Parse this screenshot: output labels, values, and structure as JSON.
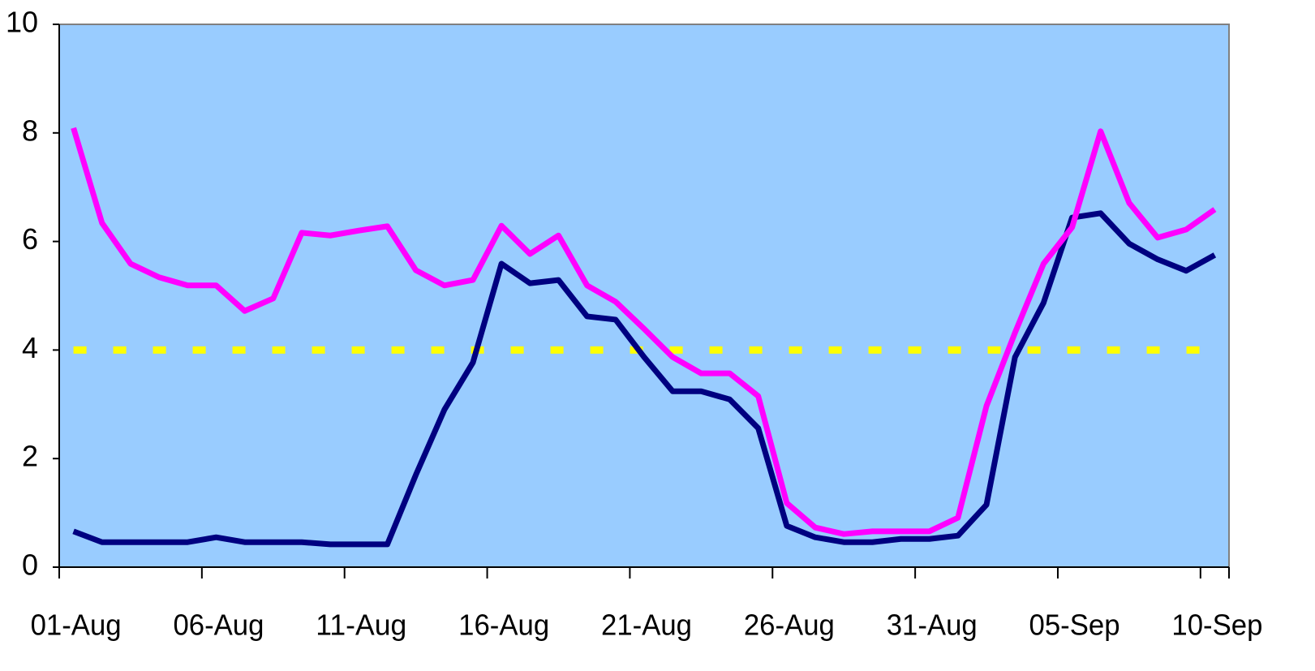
{
  "chart_data": {
    "type": "line",
    "categories": [
      "01-Aug",
      null,
      null,
      null,
      null,
      "06-Aug",
      null,
      null,
      null,
      null,
      "11-Aug",
      null,
      null,
      null,
      null,
      "16-Aug",
      null,
      null,
      null,
      null,
      "21-Aug",
      null,
      null,
      null,
      null,
      "26-Aug",
      null,
      null,
      null,
      null,
      "31-Aug",
      null,
      null,
      null,
      null,
      "05-Sep",
      null,
      null,
      null,
      null,
      "10-Sep"
    ],
    "series": [
      {
        "color": "#ffff00",
        "dashed": true,
        "values": [
          4,
          4,
          4,
          4,
          4,
          4,
          4,
          4,
          4,
          4,
          4,
          4,
          4,
          4,
          4,
          4,
          4,
          4,
          4,
          4,
          4,
          4,
          4,
          4,
          4,
          4,
          4,
          4,
          4,
          4,
          4,
          4,
          4,
          4,
          4,
          4,
          4,
          4,
          4,
          4,
          4
        ]
      },
      {
        "color": "#000080",
        "values": [
          0.66,
          0.46,
          0.46,
          0.46,
          0.46,
          0.55,
          0.46,
          0.46,
          0.46,
          0.42,
          0.42,
          0.42,
          1.7,
          2.9,
          3.77,
          5.59,
          5.23,
          5.29,
          4.62,
          4.56,
          3.87,
          3.24,
          3.24,
          3.09,
          2.56,
          0.76,
          0.55,
          0.46,
          0.46,
          0.52,
          0.52,
          0.58,
          1.15,
          3.87,
          4.87,
          6.44,
          6.52,
          5.96,
          5.67,
          5.46,
          5.75
        ]
      },
      {
        "color": "#ff00ff",
        "values": [
          8.09,
          6.34,
          5.59,
          5.34,
          5.19,
          5.19,
          4.72,
          4.95,
          6.16,
          6.11,
          6.2,
          6.28,
          5.47,
          5.19,
          5.29,
          6.29,
          5.77,
          6.11,
          5.19,
          4.89,
          4.39,
          3.87,
          3.57,
          3.57,
          3.15,
          1.18,
          0.73,
          0.61,
          0.66,
          0.66,
          0.66,
          0.91,
          2.97,
          4.32,
          5.59,
          6.26,
          8.03,
          6.71,
          6.07,
          6.22,
          6.59
        ]
      }
    ],
    "ylim": [
      0,
      10
    ],
    "yticks": [
      0,
      2,
      4,
      6,
      8,
      10
    ],
    "grid": false,
    "background": "#99ccff"
  }
}
